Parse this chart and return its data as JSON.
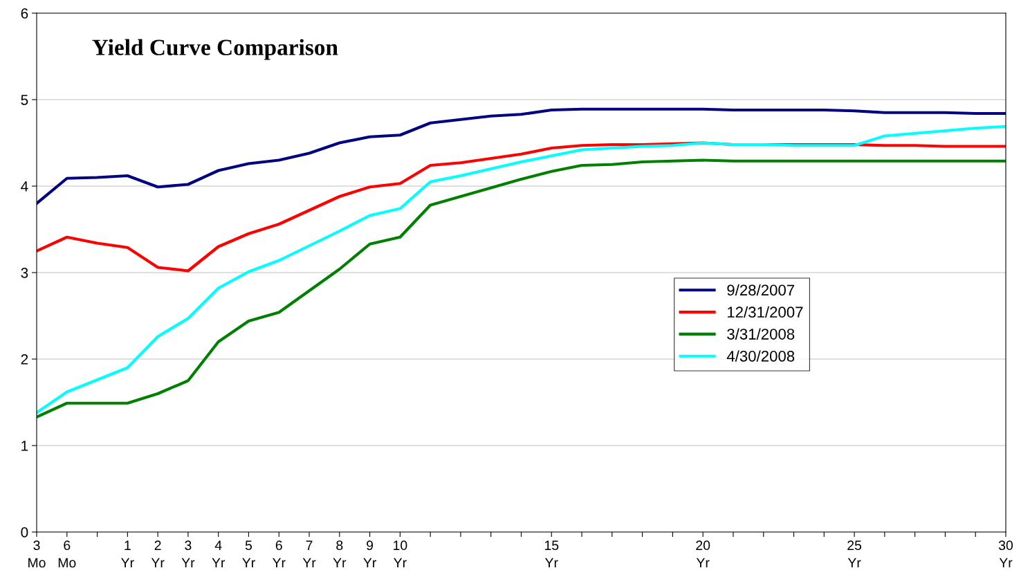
{
  "chart_data": {
    "type": "line",
    "title": "Yield Curve Comparison",
    "categories": [
      "3\nMo",
      "6\nMo",
      null,
      "1\nYr",
      "2\nYr",
      "3\nYr",
      "4\nYr",
      "5\nYr",
      "6\nYr",
      "7\nYr",
      "8\nYr",
      "9\nYr",
      "10\nYr",
      null,
      null,
      null,
      null,
      "15\nYr",
      null,
      null,
      null,
      null,
      "20\nYr",
      null,
      null,
      null,
      null,
      "25\nYr",
      null,
      null,
      null,
      null,
      "30\nYr"
    ],
    "series": [
      {
        "name": "9/28/2007",
        "color": "#000080",
        "values": [
          3.8,
          4.09,
          4.1,
          4.12,
          3.99,
          4.02,
          4.18,
          4.26,
          4.3,
          4.38,
          4.5,
          4.57,
          4.59,
          4.73,
          4.77,
          4.81,
          4.83,
          4.88,
          4.89,
          4.89,
          4.89,
          4.89,
          4.89,
          4.88,
          4.88,
          4.88,
          4.88,
          4.87,
          4.85,
          4.85,
          4.85,
          4.84,
          4.84
        ]
      },
      {
        "name": "12/31/2007",
        "color": "#ff0000",
        "values": [
          3.25,
          3.41,
          3.34,
          3.29,
          3.06,
          3.02,
          3.3,
          3.45,
          3.56,
          3.72,
          3.88,
          3.99,
          4.03,
          4.24,
          4.27,
          4.32,
          4.37,
          4.44,
          4.47,
          4.48,
          4.48,
          4.49,
          4.5,
          4.48,
          4.48,
          4.48,
          4.48,
          4.48,
          4.47,
          4.47,
          4.46,
          4.46,
          4.46
        ]
      },
      {
        "name": "3/31/2008",
        "color": "#008000",
        "values": [
          1.33,
          1.49,
          1.49,
          1.49,
          1.6,
          1.75,
          2.2,
          2.44,
          2.54,
          2.79,
          3.04,
          3.33,
          3.41,
          3.78,
          3.88,
          3.98,
          4.08,
          4.17,
          4.24,
          4.25,
          4.28,
          4.29,
          4.3,
          4.29,
          4.29,
          4.29,
          4.29,
          4.29,
          4.29,
          4.29,
          4.29,
          4.29,
          4.29
        ]
      },
      {
        "name": "4/30/2008",
        "color": "#00ffff",
        "values": [
          1.38,
          1.62,
          1.76,
          1.9,
          2.26,
          2.47,
          2.82,
          3.01,
          3.14,
          3.31,
          3.48,
          3.66,
          3.74,
          4.05,
          4.12,
          4.2,
          4.28,
          4.35,
          4.42,
          4.44,
          4.46,
          4.47,
          4.5,
          4.48,
          4.48,
          4.47,
          4.47,
          4.47,
          4.58,
          4.61,
          4.64,
          4.67,
          4.69
        ]
      }
    ],
    "ylim": [
      0,
      6
    ],
    "yticks": [
      0,
      1,
      2,
      3,
      4,
      5,
      6
    ],
    "grid": "y",
    "legend": "right",
    "marker": "none",
    "line_style": "solid"
  }
}
